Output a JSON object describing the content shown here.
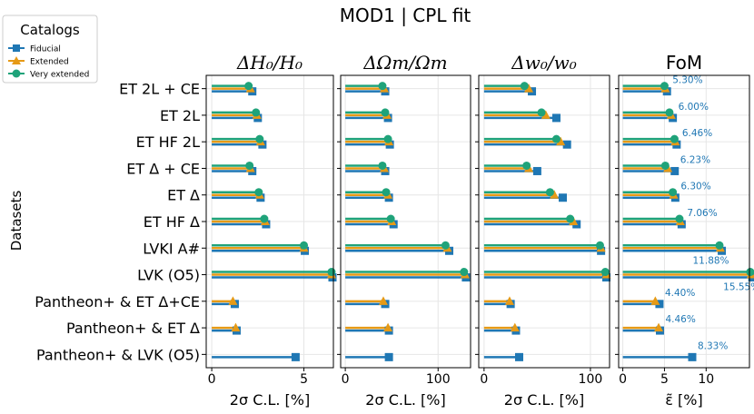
{
  "title": "MOD1 | CPL fit",
  "ylabel": "Datasets",
  "legend": {
    "title": "Catalogs",
    "entries": [
      {
        "name": "Fiducial",
        "color": "#1f77b4",
        "marker": "square"
      },
      {
        "name": "Extended",
        "color": "#ff9f1c",
        "marker": "triangle"
      },
      {
        "name": "Very extended",
        "color": "#1fa37a",
        "marker": "circle"
      }
    ]
  },
  "colors": {
    "fiducial": "#1f77b4",
    "extended": "#e69a16",
    "very_extended": "#1fa37a",
    "grid": "#e6e6e6",
    "annotation": "#1f77b4"
  },
  "chart_data": {
    "type": "bar",
    "orientation": "horizontal",
    "categories": [
      "ET 2L + CE",
      "ET 2L",
      "ET HF 2L",
      "ET Δ + CE",
      "ET Δ",
      "ET HF Δ",
      "LVKI A#",
      "LVK (O5)",
      "Pantheon+ & ET Δ+CE",
      "Pantheon+ & ET Δ",
      "Pantheon+ & LVK (O5)"
    ],
    "series_names": [
      "Fiducial",
      "Extended",
      "Very extended"
    ],
    "panels": [
      {
        "title": "ΔH₀/H₀",
        "xlabel": "2σ C.L. [%]",
        "xlim": [
          -0.3,
          6.6
        ],
        "xticks": [
          0,
          5
        ],
        "values": {
          "Fiducial": [
            2.2,
            2.5,
            2.75,
            2.2,
            2.65,
            2.95,
            5.05,
            6.55,
            1.25,
            1.35,
            4.55
          ],
          "Extended": [
            2.1,
            2.45,
            2.65,
            2.1,
            2.6,
            2.9,
            5.0,
            6.5,
            1.15,
            1.3,
            null
          ],
          "Very extended": [
            2.0,
            2.4,
            2.6,
            2.05,
            2.55,
            2.85,
            5.0,
            6.5,
            null,
            null,
            null
          ]
        }
      },
      {
        "title": "ΔΩm/Ωm",
        "xlabel": "2σ C.L. [%]",
        "xlim": [
          -5,
          135
        ],
        "xticks": [
          0,
          100
        ],
        "values": {
          "Fiducial": [
            43,
            46,
            48,
            43,
            47,
            52,
            112,
            130,
            43,
            47,
            47
          ],
          "Extended": [
            42,
            45,
            47,
            42,
            46,
            50,
            110,
            129,
            41,
            46,
            null
          ],
          "Very extended": [
            40,
            43,
            46,
            40,
            44,
            49,
            108,
            128,
            null,
            null,
            null
          ]
        }
      },
      {
        "title": "Δw₀/w₀",
        "xlabel": "2σ C.L. [%]",
        "xlim": [
          -5,
          118
        ],
        "xticks": [
          0,
          100
        ],
        "values": {
          "Fiducial": [
            45,
            68,
            78,
            50,
            74,
            87,
            110,
            115,
            25,
            30,
            33
          ],
          "Extended": [
            42,
            58,
            72,
            42,
            66,
            84,
            110,
            115,
            24,
            29,
            null
          ],
          "Very extended": [
            38,
            54,
            68,
            40,
            62,
            81,
            109,
            114,
            null,
            null,
            null
          ]
        }
      },
      {
        "title": "FoM",
        "xlabel": "ε̃ [%]",
        "xlim": [
          -0.5,
          15.2
        ],
        "xticks": [
          0,
          5,
          10
        ],
        "values": {
          "Fiducial": [
            5.3,
            6.0,
            6.46,
            6.23,
            6.3,
            7.06,
            11.88,
            15.55,
            4.4,
            4.46,
            8.33
          ],
          "Extended": [
            5.1,
            5.8,
            6.3,
            5.4,
            6.1,
            6.9,
            11.7,
            15.4,
            3.9,
            4.3,
            null
          ],
          "Very extended": [
            5.0,
            5.6,
            6.2,
            5.1,
            6.0,
            6.8,
            11.6,
            15.3,
            null,
            null,
            null
          ]
        },
        "annotations": [
          "5.30%",
          "6.00%",
          "6.46%",
          "6.23%",
          "6.30%",
          "7.06%",
          "11.88%",
          "15.55%",
          "4.40%",
          "4.46%",
          "8.33%"
        ]
      }
    ]
  }
}
